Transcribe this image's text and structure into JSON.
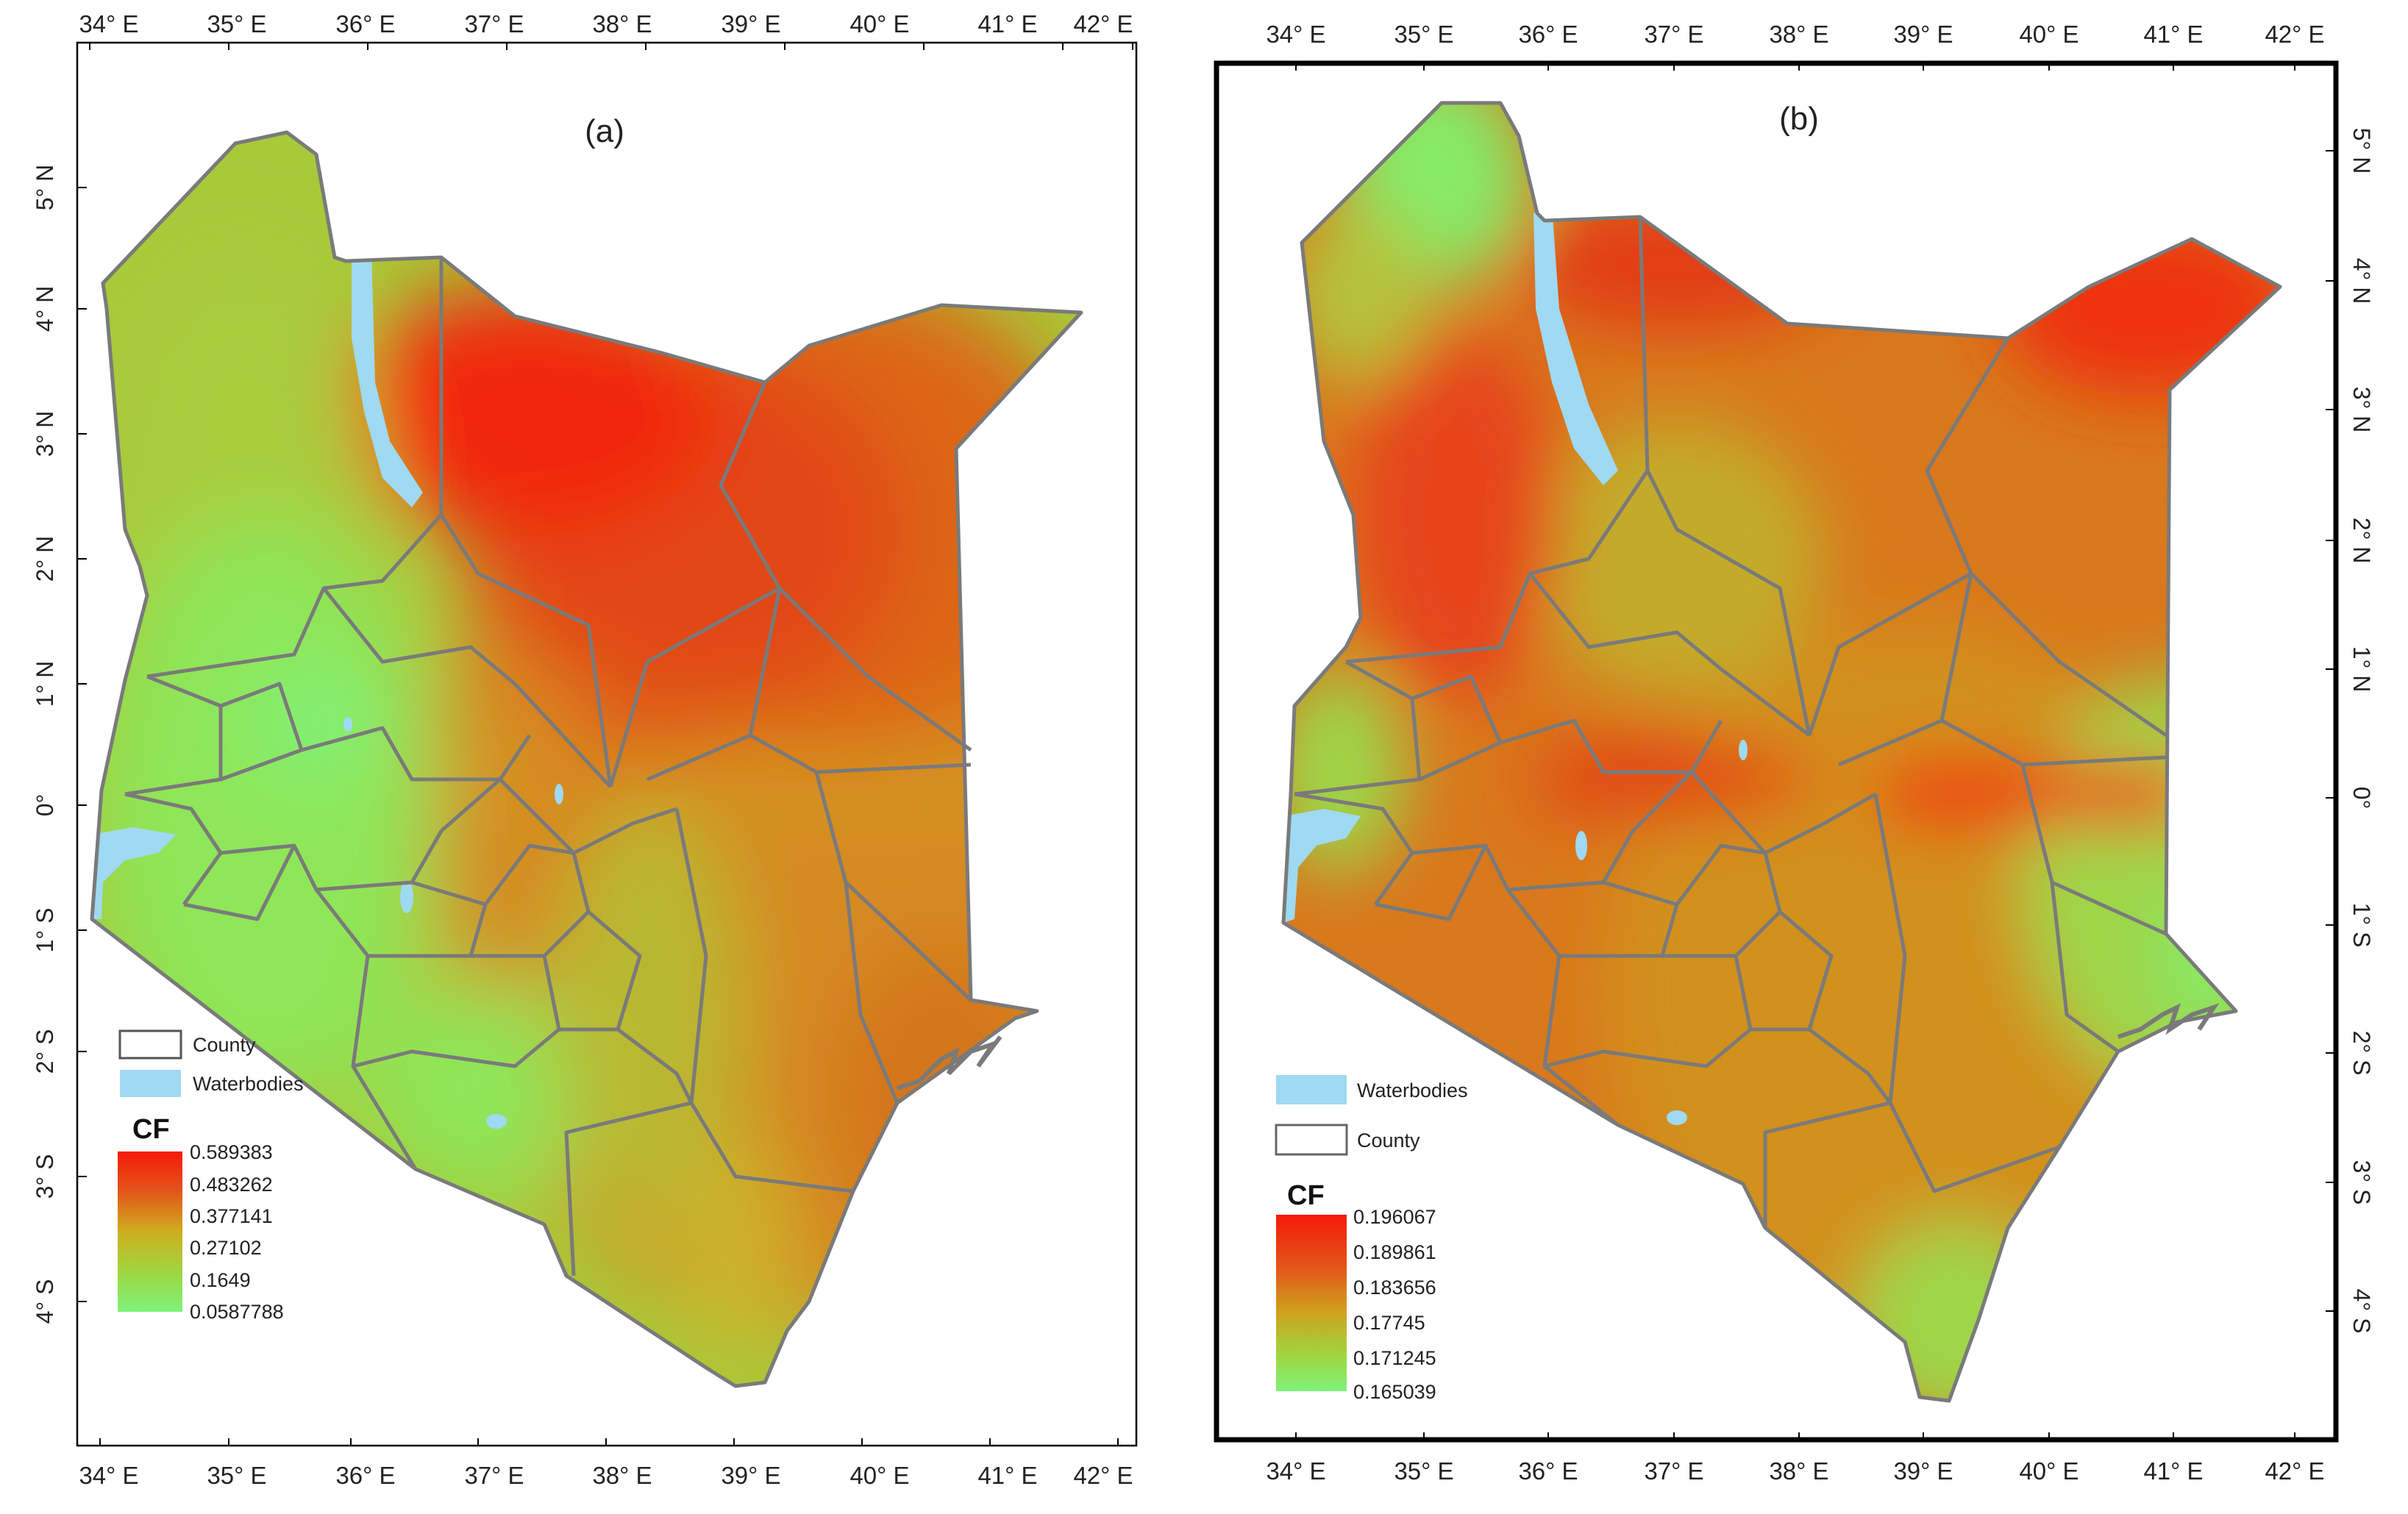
{
  "panels": [
    {
      "label": "(a)",
      "ticks": {
        "top": [
          "34° E",
          "35° E",
          "36° E",
          "37° E",
          "38° E",
          "39° E",
          "40° E",
          "41° E",
          "42° E"
        ],
        "bottom": [
          "34° E",
          "35° E",
          "36° E",
          "37° E",
          "38° E",
          "39° E",
          "40° E",
          "41° E",
          "42° E"
        ],
        "left": [
          "5° N",
          "4° N",
          "3° N",
          "2° N",
          "1° N",
          "0°",
          "1° S",
          "2° S",
          "3° S",
          "4° S"
        ]
      },
      "legend": {
        "county_label": "County",
        "waterbodies_label": "Waterbodies",
        "county_first": true
      },
      "colorbar": {
        "title": "CF",
        "values": [
          "0.589383",
          "0.483262",
          "0.377141",
          "0.27102",
          "0.1649",
          "0.0587788"
        ]
      },
      "colors": {
        "low": "#7ff27a",
        "mid": "#cfae1e",
        "high": "#f51a0a",
        "water": "#9fd9f2"
      }
    },
    {
      "label": "(b)",
      "ticks": {
        "top": [
          "34° E",
          "35° E",
          "36° E",
          "37° E",
          "38° E",
          "39° E",
          "40° E",
          "41° E",
          "42° E"
        ],
        "bottom": [
          "34° E",
          "35° E",
          "36° E",
          "37° E",
          "38° E",
          "39° E",
          "40° E",
          "41° E",
          "42° E"
        ],
        "right": [
          "5° N",
          "4° N",
          "3° N",
          "2° N",
          "1° N",
          "0°",
          "1° S",
          "2° S",
          "3° S",
          "4° S"
        ]
      },
      "legend": {
        "county_label": "County",
        "waterbodies_label": "Waterbodies",
        "county_first": false
      },
      "colorbar": {
        "title": "CF",
        "values": [
          "0.196067",
          "0.189861",
          "0.183656",
          "0.17745",
          "0.171245",
          "0.165039"
        ]
      },
      "colors": {
        "low": "#7ff27a",
        "mid": "#cfae1e",
        "high": "#f51a0a",
        "water": "#9fd9f2"
      }
    }
  ]
}
